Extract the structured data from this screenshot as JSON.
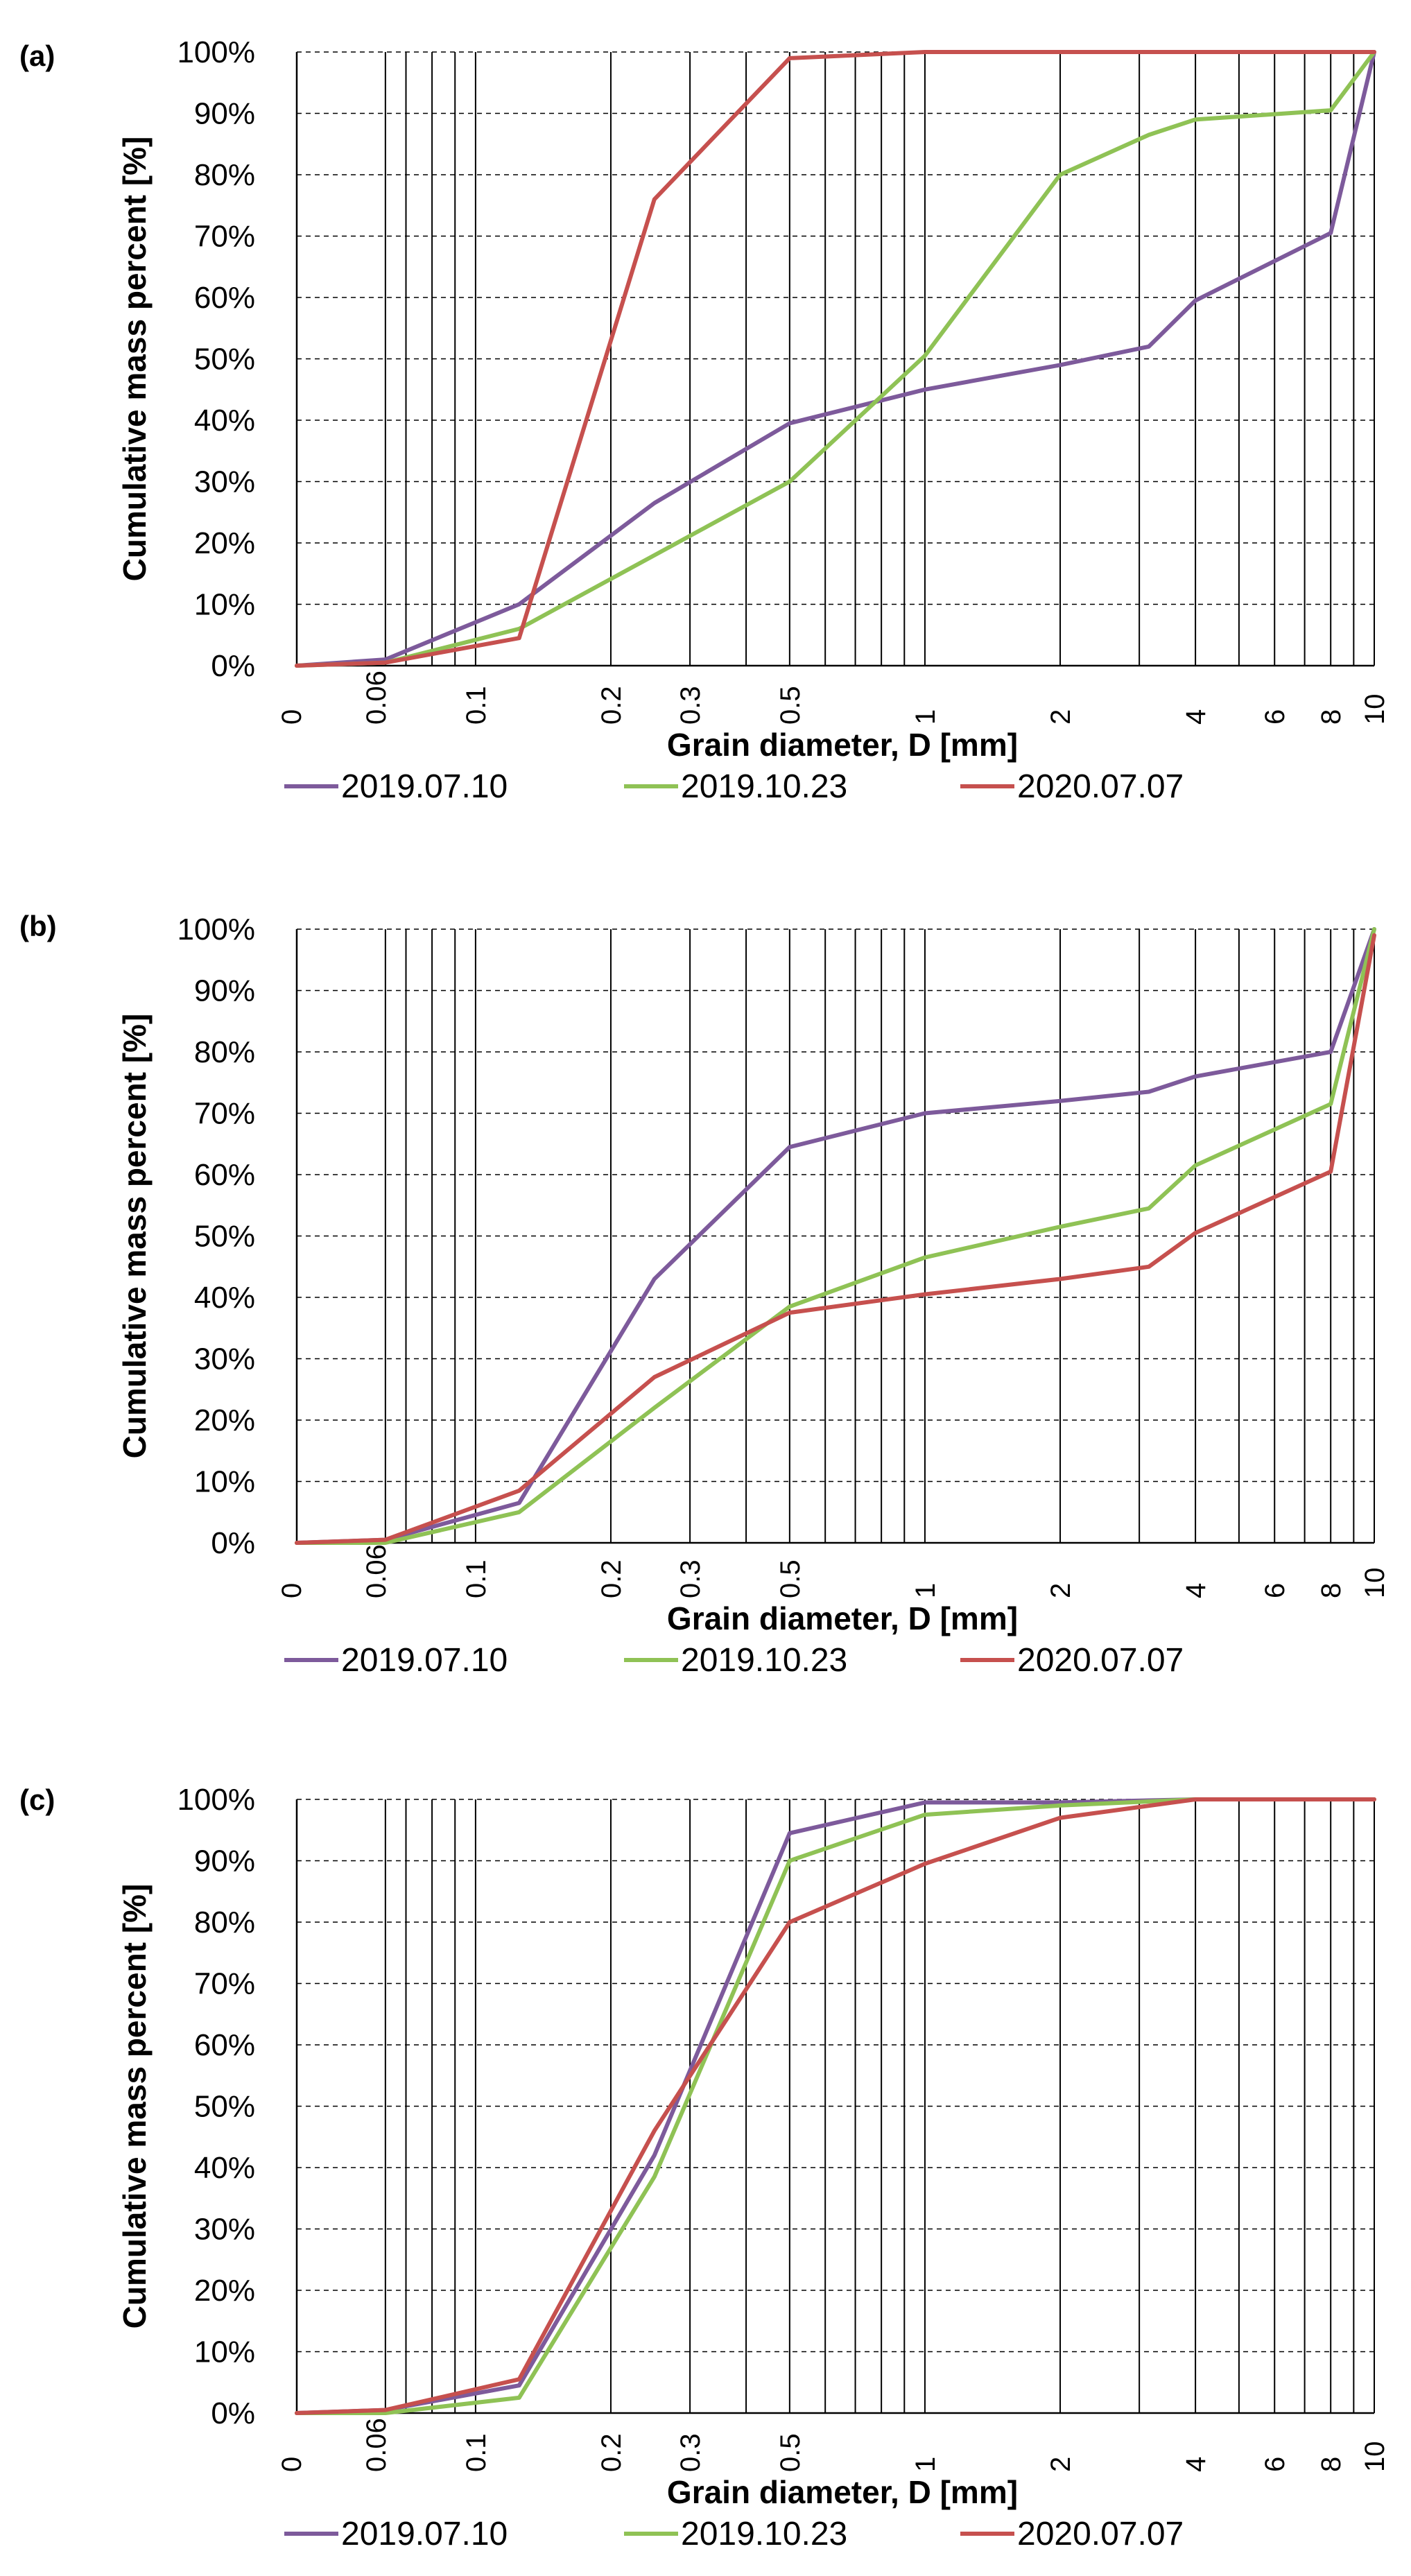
{
  "colors": {
    "2019.07.10": "#7d5a9b",
    "2019.10.23": "#8fc255",
    "2020.07.07": "#c6504e"
  },
  "chart_data": [
    {
      "panel": "(a)",
      "type": "line",
      "xscale": "log",
      "xlim": [
        0.04,
        10
      ],
      "ylim": [
        0,
        100
      ],
      "x_tick_labels": [
        "0",
        "0.06",
        "0.1",
        "0.2",
        "0.3",
        "0.5",
        "1",
        "2",
        "4",
        "6",
        "8",
        "10"
      ],
      "y_tick_labels": [
        "0%",
        "10%",
        "20%",
        "30%",
        "40%",
        "50%",
        "60%",
        "70%",
        "80%",
        "90%",
        "100%"
      ],
      "xlabel": "Grain diameter, D [mm]",
      "ylabel": "Cumulative mass percent [%]",
      "legend_position": "bottom",
      "series": [
        {
          "name": "2019.07.10",
          "x": [
            0.04,
            0.063,
            0.125,
            0.25,
            0.5,
            1,
            2,
            3.15,
            4,
            8,
            10
          ],
          "y": [
            0,
            1,
            10,
            26.5,
            39.5,
            45,
            49,
            52,
            59.5,
            70.5,
            100
          ]
        },
        {
          "name": "2019.10.23",
          "x": [
            0.04,
            0.063,
            0.125,
            0.25,
            0.5,
            1,
            2,
            3.15,
            4,
            8,
            10
          ],
          "y": [
            0,
            0.5,
            6,
            18,
            30,
            50.5,
            80,
            86.5,
            89,
            90.5,
            100
          ]
        },
        {
          "name": "2020.07.07",
          "x": [
            0.04,
            0.063,
            0.125,
            0.25,
            0.5,
            1,
            2,
            3.15,
            4,
            8,
            10
          ],
          "y": [
            0,
            0.5,
            4.5,
            76,
            99,
            100,
            100,
            100,
            100,
            100,
            100
          ]
        }
      ]
    },
    {
      "panel": "(b)",
      "type": "line",
      "xscale": "log",
      "xlim": [
        0.04,
        10
      ],
      "ylim": [
        0,
        100
      ],
      "x_tick_labels": [
        "0",
        "0.06",
        "0.1",
        "0.2",
        "0.3",
        "0.5",
        "1",
        "2",
        "4",
        "6",
        "8",
        "10"
      ],
      "y_tick_labels": [
        "0%",
        "10%",
        "20%",
        "30%",
        "40%",
        "50%",
        "60%",
        "70%",
        "80%",
        "90%",
        "100%"
      ],
      "xlabel": "Grain diameter, D [mm]",
      "ylabel": "Cumulative mass percent [%]",
      "legend_position": "bottom",
      "series": [
        {
          "name": "2019.07.10",
          "x": [
            0.04,
            0.063,
            0.125,
            0.25,
            0.5,
            1,
            2,
            3.15,
            4,
            8,
            10
          ],
          "y": [
            0,
            0.5,
            6.5,
            43,
            64.5,
            70,
            72,
            73.5,
            76,
            80,
            100
          ]
        },
        {
          "name": "2019.10.23",
          "x": [
            0.04,
            0.063,
            0.125,
            0.25,
            0.5,
            1,
            2,
            3.15,
            4,
            8,
            10
          ],
          "y": [
            0,
            0,
            5,
            22,
            38.5,
            46.5,
            51.5,
            54.5,
            61.5,
            71.5,
            100
          ]
        },
        {
          "name": "2020.07.07",
          "x": [
            0.04,
            0.063,
            0.125,
            0.25,
            0.5,
            1,
            2,
            3.15,
            4,
            8,
            10
          ],
          "y": [
            0,
            0.5,
            8.5,
            27,
            37.5,
            40.5,
            43,
            45,
            50.5,
            60.5,
            99
          ]
        }
      ]
    },
    {
      "panel": "(c)",
      "type": "line",
      "xscale": "log",
      "xlim": [
        0.04,
        10
      ],
      "ylim": [
        0,
        100
      ],
      "x_tick_labels": [
        "0",
        "0.06",
        "0.1",
        "0.2",
        "0.3",
        "0.5",
        "1",
        "2",
        "4",
        "6",
        "8",
        "10"
      ],
      "y_tick_labels": [
        "0%",
        "10%",
        "20%",
        "30%",
        "40%",
        "50%",
        "60%",
        "70%",
        "80%",
        "90%",
        "100%"
      ],
      "xlabel": "Grain diameter, D [mm]",
      "ylabel": "Cumulative mass percent [%]",
      "legend_position": "bottom",
      "series": [
        {
          "name": "2019.07.10",
          "x": [
            0.04,
            0.063,
            0.125,
            0.25,
            0.5,
            1,
            2,
            4,
            10
          ],
          "y": [
            0,
            0.5,
            4.5,
            42,
            94.5,
            99.5,
            99.5,
            100,
            100
          ]
        },
        {
          "name": "2019.10.23",
          "x": [
            0.04,
            0.063,
            0.125,
            0.25,
            0.5,
            1,
            2,
            4,
            10
          ],
          "y": [
            0,
            0,
            2.5,
            38.5,
            90,
            97.5,
            99,
            100,
            100
          ]
        },
        {
          "name": "2020.07.07",
          "x": [
            0.04,
            0.063,
            0.125,
            0.25,
            0.5,
            1,
            2,
            4,
            10
          ],
          "y": [
            0,
            0.5,
            5.5,
            46,
            80,
            89.5,
            97,
            100,
            100
          ]
        }
      ]
    }
  ]
}
